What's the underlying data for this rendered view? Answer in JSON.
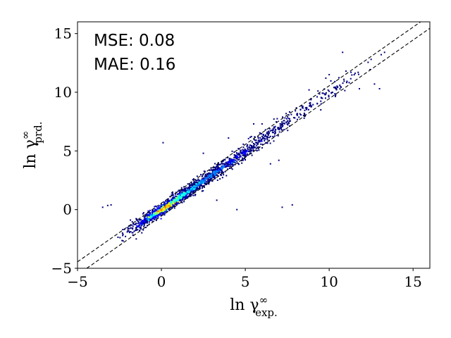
{
  "chart_data": {
    "type": "scatter",
    "title": "",
    "xlabel": {
      "base": "ln γ",
      "sup": "∞",
      "sub": "exp."
    },
    "ylabel": {
      "base": "ln γ",
      "sup": "∞",
      "sub": "prd."
    },
    "xlim": [
      -5,
      16
    ],
    "ylim": [
      -5,
      16
    ],
    "xticks": [
      -5,
      0,
      5,
      10,
      15
    ],
    "yticks": [
      -5,
      0,
      5,
      10,
      15
    ],
    "xtick_labels": [
      "−5",
      "0",
      "5",
      "10",
      "15"
    ],
    "ytick_labels": [
      "−5",
      "0",
      "5",
      "10",
      "15"
    ],
    "annotations": [
      "MSE: 0.08",
      "MAE: 0.16"
    ],
    "reference_lines": [
      {
        "style": "dashed",
        "color": "#000000",
        "intercept": 0.55,
        "slope": 1
      },
      {
        "style": "dashed",
        "color": "#000000",
        "intercept": -0.55,
        "slope": 1
      }
    ],
    "colormap": "jet (density)",
    "density_colors": [
      "#00007f",
      "#0000ff",
      "#0080ff",
      "#00ffff",
      "#80ff80",
      "#ffff00",
      "#ff8000",
      "#ff0000"
    ],
    "grid": false,
    "legend": "none",
    "clusters": [
      {
        "x": -1.2,
        "y": -1.15,
        "density": 0.3
      },
      {
        "x": -0.6,
        "y": -0.55,
        "density": 0.5
      },
      {
        "x": -0.2,
        "y": -0.2,
        "density": 0.75
      },
      {
        "x": 0.2,
        "y": 0.15,
        "density": 1.0
      },
      {
        "x": 0.5,
        "y": 0.45,
        "density": 0.95
      },
      {
        "x": 0.9,
        "y": 0.85,
        "density": 0.7
      },
      {
        "x": 1.3,
        "y": 1.25,
        "density": 0.6
      },
      {
        "x": 1.8,
        "y": 1.75,
        "density": 0.5
      },
      {
        "x": 2.3,
        "y": 2.25,
        "density": 0.45
      },
      {
        "x": 2.9,
        "y": 2.85,
        "density": 0.4
      },
      {
        "x": 3.5,
        "y": 3.45,
        "density": 0.35
      },
      {
        "x": 4.2,
        "y": 4.15,
        "density": 0.3
      },
      {
        "x": 5.0,
        "y": 4.95,
        "density": 0.2
      },
      {
        "x": 6.0,
        "y": 5.95,
        "density": 0.15
      },
      {
        "x": 7.0,
        "y": 7.0,
        "density": 0.1
      },
      {
        "x": 8.5,
        "y": 8.5,
        "density": 0.08
      },
      {
        "x": 10.5,
        "y": 10.4,
        "density": 0.06
      }
    ],
    "outliers": [
      {
        "x": -3.5,
        "y": 0.2
      },
      {
        "x": -3.2,
        "y": 0.35
      },
      {
        "x": -3.0,
        "y": 0.4
      },
      {
        "x": 0.1,
        "y": 5.7
      },
      {
        "x": 7.8,
        "y": 0.4
      },
      {
        "x": 7.2,
        "y": 0.2
      },
      {
        "x": 10.8,
        "y": 13.4
      },
      {
        "x": 13.3,
        "y": 13.4
      },
      {
        "x": 13.0,
        "y": 10.3
      },
      {
        "x": 12.7,
        "y": 10.7
      },
      {
        "x": 11.8,
        "y": 10.3
      },
      {
        "x": 9.8,
        "y": 11.2
      },
      {
        "x": 4.5,
        "y": 0.0
      },
      {
        "x": 3.3,
        "y": 0.8
      },
      {
        "x": 6.0,
        "y": 7.3
      },
      {
        "x": 4.0,
        "y": 6.1
      },
      {
        "x": 9.5,
        "y": 8.5
      },
      {
        "x": 8.8,
        "y": 10.2
      },
      {
        "x": 10.0,
        "y": 11.5
      },
      {
        "x": 11.0,
        "y": 11.8
      },
      {
        "x": 11.3,
        "y": 11.7
      },
      {
        "x": -1.5,
        "y": -2.5
      },
      {
        "x": -2.0,
        "y": -1.8
      },
      {
        "x": -2.3,
        "y": -1.7
      },
      {
        "x": 12.5,
        "y": 12.8
      },
      {
        "x": 13.1,
        "y": 13.2
      },
      {
        "x": 2.5,
        "y": 4.8
      },
      {
        "x": 7.0,
        "y": 4.2
      },
      {
        "x": 6.5,
        "y": 3.9
      },
      {
        "x": 5.5,
        "y": 7.3
      }
    ]
  }
}
